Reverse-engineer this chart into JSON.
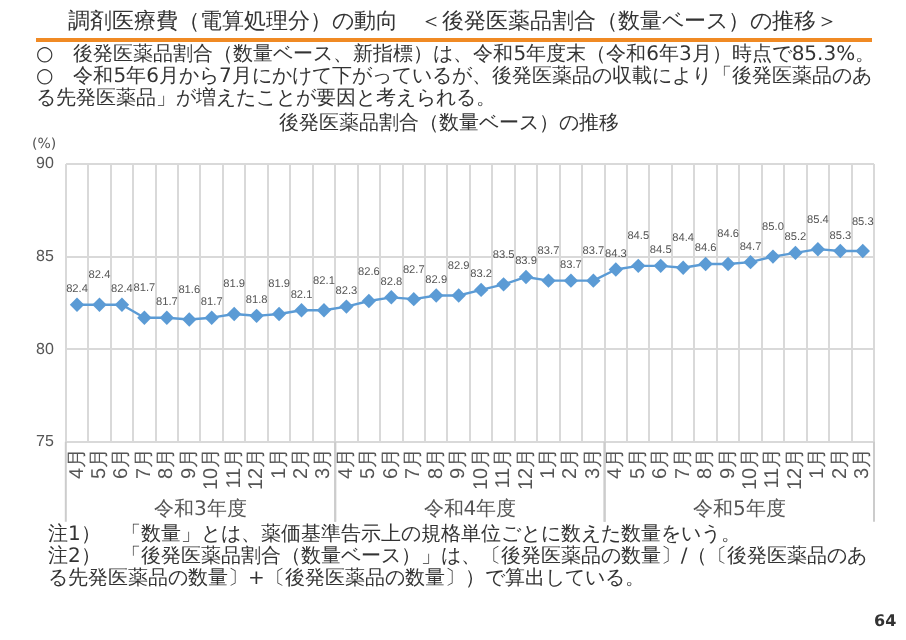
{
  "chart_data": {
    "type": "line",
    "title": "調剤医療費（電算処理分）の動向　＜後発医薬品割合（数量ベース）の推移＞",
    "subtitle": "後発医薬品割合（数量ベース）の推移",
    "ylabel": "(%)",
    "categories": [
      "4月",
      "5月",
      "6月",
      "7月",
      "8月",
      "9月",
      "10月",
      "11月",
      "12月",
      "1月",
      "2月",
      "3月",
      "4月",
      "5月",
      "6月",
      "7月",
      "8月",
      "9月",
      "10月",
      "11月",
      "12月",
      "1月",
      "2月",
      "3月",
      "4月",
      "5月",
      "6月",
      "7月",
      "8月",
      "9月",
      "10月",
      "11月",
      "12月",
      "1月",
      "2月",
      "3月"
    ],
    "series": [
      {
        "color": "#5b9bd5",
        "values": [
          82.4,
          82.4,
          82.4,
          81.7,
          81.7,
          81.6,
          81.7,
          81.9,
          81.8,
          81.9,
          82.1,
          82.1,
          82.3,
          82.6,
          82.8,
          82.7,
          82.9,
          82.9,
          83.2,
          83.5,
          83.9,
          83.7,
          83.7,
          83.7,
          84.3,
          84.5,
          84.5,
          84.4,
          84.6,
          84.6,
          84.7,
          85.0,
          85.2,
          85.4,
          85.3,
          85.3
        ]
      }
    ],
    "value_labels": [
      "82.4",
      "82.4",
      "82.4",
      "81.7",
      "81.7",
      "81.6",
      "81.7",
      "81.9",
      "81.8",
      "81.9",
      "82.1",
      "82.1",
      "82.3",
      "82.6",
      "82.8",
      "82.7",
      "82.9",
      "82.9",
      "83.2",
      "83.5",
      "83.9",
      "83.7",
      "83.7",
      "83.7",
      "84.3",
      "84.5",
      "84.5",
      "84.4",
      "84.6",
      "84.6",
      "84.7",
      "85.0",
      "85.2",
      "85.4",
      "85.3",
      "85.3"
    ],
    "ylim": [
      75,
      90
    ],
    "yticks": [
      75,
      80,
      85,
      90
    ],
    "grid": true,
    "legend": false,
    "marker": "diamond",
    "line_style": "solid",
    "annotations": [
      "○　後発医薬品割合（数量ベース、新指標）は、令和5年度末（令和6年3月）時点で85.3%。",
      "○　令和5年6月から7月にかけて下がっているが、後発医薬品の収載により「後発医薬品のある先発医薬品」が増えたことが要因と考えられる。",
      "令和3年度",
      "令和4年度",
      "令和5年度",
      "注1）　「数量」とは、薬価基準告示上の規格単位ごとに数えた数量をいう。",
      "注2）　「後発医薬品割合（数量ベース）」は、〔後発医薬品の数量〕/（〔後発医薬品のある先発医薬品の数量〕+〔後発医薬品の数量〕）で算出している。",
      "64"
    ]
  }
}
